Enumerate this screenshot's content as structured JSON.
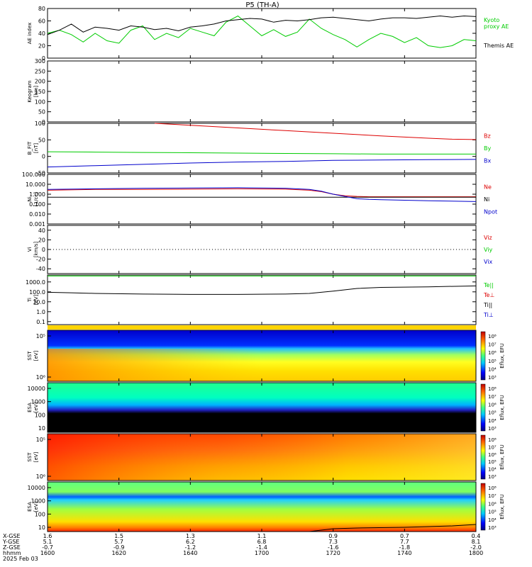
{
  "title": "P5 (TH-A)",
  "chart_data": [
    {
      "type": "line",
      "panel": "ae",
      "ylabel": "AE index",
      "ylim": [
        0,
        80
      ],
      "yticks": [
        "0",
        "20",
        "40",
        "60",
        "80"
      ],
      "series": [
        {
          "name": "Kyoto proxy AE",
          "color": "#00cc00",
          "x": [
            0,
            5,
            10,
            15,
            20,
            25,
            30,
            35,
            40,
            45,
            50,
            55,
            60,
            65,
            70,
            75,
            80,
            85,
            90,
            95,
            100,
            105,
            110,
            115,
            120,
            125,
            130,
            135,
            140,
            145,
            150,
            155,
            160,
            165,
            170,
            175,
            180
          ],
          "values": [
            40,
            45,
            38,
            26,
            40,
            28,
            24,
            45,
            52,
            30,
            40,
            33,
            48,
            42,
            36,
            58,
            68,
            52,
            36,
            46,
            35,
            42,
            63,
            48,
            38,
            30,
            18,
            30,
            40,
            35,
            25,
            33,
            20,
            17,
            20,
            30,
            28
          ]
        },
        {
          "name": "Themis AE",
          "color": "#000000",
          "x": [
            0,
            5,
            10,
            15,
            20,
            25,
            30,
            35,
            40,
            45,
            50,
            55,
            60,
            65,
            70,
            75,
            80,
            85,
            90,
            95,
            100,
            105,
            110,
            115,
            120,
            125,
            130,
            135,
            140,
            145,
            150,
            155,
            160,
            165,
            170,
            175,
            180
          ],
          "values": [
            38,
            45,
            55,
            42,
            50,
            48,
            45,
            52,
            50,
            46,
            48,
            44,
            50,
            52,
            55,
            60,
            62,
            64,
            63,
            58,
            61,
            60,
            62,
            65,
            66,
            64,
            62,
            60,
            63,
            65,
            65,
            64,
            66,
            68,
            66,
            68,
            67
          ]
        }
      ]
    },
    {
      "type": "line",
      "panel": "keogram",
      "ylabel": "Keogram",
      "yunit": "[km]",
      "ylim": [
        0,
        300
      ],
      "yticks": [
        "0",
        "50",
        "100",
        "150",
        "200",
        "250",
        "300"
      ],
      "series": []
    },
    {
      "type": "line",
      "panel": "bfield",
      "ylabel": "B_FIT",
      "yunit": "[nT]",
      "ylim": [
        -50,
        100
      ],
      "yticks": [
        "-50",
        "0",
        "50",
        "100"
      ],
      "series": [
        {
          "name": "Bz",
          "color": "#dd0000",
          "x": [
            45,
            60,
            80,
            100,
            120,
            140,
            160,
            170,
            180
          ],
          "values": [
            100,
            94,
            86,
            78,
            70,
            62,
            55,
            52,
            51
          ]
        },
        {
          "name": "By",
          "color": "#00cc00",
          "x": [
            0,
            20,
            40,
            60,
            80,
            100,
            120,
            140,
            160,
            180
          ],
          "values": [
            14,
            13,
            12,
            11,
            10,
            9,
            8,
            7,
            7,
            7
          ]
        },
        {
          "name": "Bx",
          "color": "#0000cc",
          "x": [
            0,
            20,
            40,
            60,
            80,
            100,
            120,
            140,
            160,
            180
          ],
          "values": [
            -32,
            -28,
            -24,
            -20,
            -17,
            -15,
            -12,
            -11,
            -10,
            -9
          ]
        }
      ]
    },
    {
      "type": "line",
      "panel": "density",
      "ylabel": "Ni",
      "yunit": "[1/cc]",
      "ylim": [
        0.001,
        100
      ],
      "yticks": [
        "0.001",
        "0.010",
        "0.100",
        "1.000",
        "10.000",
        "100.000"
      ],
      "series": [
        {
          "name": "Ne",
          "color": "#dd0000",
          "x": [
            0,
            20,
            40,
            60,
            80,
            100,
            110,
            115,
            120,
            125,
            130,
            135,
            140,
            160,
            180
          ],
          "values": [
            2.5,
            3,
            3,
            3.2,
            3.5,
            3.2,
            2.5,
            1.8,
            1.0,
            0.7,
            0.6,
            0.55,
            0.55,
            0.55,
            0.55
          ]
        },
        {
          "name": "Ni",
          "color": "#000000",
          "x": [
            0,
            20,
            40,
            60,
            80,
            100,
            120,
            140,
            160,
            180
          ],
          "values": [
            0.5,
            0.5,
            0.5,
            0.5,
            0.5,
            0.5,
            0.5,
            0.5,
            0.5,
            0.5
          ]
        },
        {
          "name": "Npot",
          "color": "#0000cc",
          "x": [
            0,
            20,
            40,
            60,
            80,
            100,
            110,
            115,
            120,
            125,
            130,
            135,
            140,
            160,
            180
          ],
          "values": [
            3,
            3.5,
            4,
            4.2,
            4.5,
            4,
            3,
            2,
            1.0,
            0.6,
            0.35,
            0.3,
            0.28,
            0.22,
            0.18
          ]
        }
      ]
    },
    {
      "type": "line",
      "panel": "velocity",
      "ylabel": "Vi",
      "yunit": "[km/s]",
      "ylim": [
        -50,
        50
      ],
      "yticks": [
        "-40",
        "-20",
        "0",
        "20",
        "40"
      ],
      "series": [
        {
          "name": "Viz",
          "color": "#dd0000",
          "x": [],
          "values": []
        },
        {
          "name": "Viy",
          "color": "#00cc00",
          "x": [],
          "values": []
        },
        {
          "name": "Vix",
          "color": "#0000cc",
          "x": [],
          "values": []
        }
      ]
    },
    {
      "type": "line",
      "panel": "temperature",
      "ylabel": "Ti",
      "yunit": "[eV]",
      "ylim": [
        0.05,
        5000
      ],
      "yticks": [
        "0.1",
        "1.0",
        "10.0",
        "100.0",
        "1000.0"
      ],
      "series": [
        {
          "name": "Te||",
          "color": "#00cc00",
          "x": [
            0,
            20,
            40,
            60,
            80,
            100,
            120,
            140,
            160,
            180
          ],
          "values": [
            4000,
            4000,
            4000,
            4000,
            4000,
            4000,
            4000,
            4000,
            4000,
            4000
          ]
        },
        {
          "name": "Te⊥",
          "color": "#dd0000",
          "x": [],
          "values": []
        },
        {
          "name": "Ti||",
          "color": "#000000",
          "x": [
            0,
            10,
            20,
            40,
            60,
            80,
            100,
            110,
            120,
            130,
            140,
            160,
            175,
            180
          ],
          "values": [
            90,
            80,
            70,
            60,
            55,
            55,
            60,
            70,
            120,
            220,
            280,
            320,
            380,
            400
          ]
        },
        {
          "name": "Ti⊥",
          "color": "#0000cc",
          "x": [],
          "values": []
        }
      ]
    },
    {
      "type": "heatmap",
      "panel": "sst-ion",
      "ylabel": "SST",
      "yunit": "[eV]",
      "yticks": [
        "10⁶",
        "10⁵"
      ],
      "colorbar_label": "Eflux, EFU",
      "colorbar_ticks": [
        "10⁸",
        "10⁷",
        "10⁶",
        "10⁵",
        "10⁴",
        "10³"
      ]
    },
    {
      "type": "heatmap",
      "panel": "esa-ion",
      "ylabel": "ESA",
      "yunit": "[eV]",
      "yticks": [
        "10",
        "100",
        "1000",
        "10000"
      ],
      "colorbar_label": "Eflux, EFU",
      "colorbar_ticks": [
        "10⁸",
        "10⁷",
        "10⁶",
        "10⁵",
        "10⁴",
        "10³"
      ]
    },
    {
      "type": "heatmap",
      "panel": "sst-elec",
      "ylabel": "SST",
      "yunit": "[eV]",
      "yticks": [
        "10⁶",
        "10⁵"
      ],
      "colorbar_label": "Eflux, EFU",
      "colorbar_ticks": [
        "10⁸",
        "10⁷",
        "10⁶",
        "10⁵",
        "10⁴",
        "10³"
      ]
    },
    {
      "type": "heatmap",
      "panel": "esa-elec",
      "ylabel": "ESA",
      "yunit": "[eV]",
      "yticks": [
        "10",
        "100",
        "1000",
        "10000"
      ],
      "colorbar_label": "Eflux, EFU",
      "colorbar_ticks": [
        "10⁸",
        "10⁷",
        "10⁶",
        "10⁵",
        "10⁴",
        "10³"
      ]
    }
  ],
  "xaxis": {
    "row_labels": [
      "X-GSE",
      "Y-GSE",
      "Z-GSE",
      "hhmm",
      "2025 Feb 03"
    ],
    "ticks": [
      {
        "x": 0,
        "values": [
          "1.6",
          "5.1",
          "-0.7",
          "1600"
        ]
      },
      {
        "x": 30,
        "values": [
          "1.5",
          "5.7",
          "-0.9",
          "1620"
        ]
      },
      {
        "x": 60,
        "values": [
          "1.3",
          "6.2",
          "-1.2",
          "1640"
        ]
      },
      {
        "x": 90,
        "values": [
          "1.1",
          "6.8",
          "-1.4",
          "1700"
        ]
      },
      {
        "x": 120,
        "values": [
          "0.9",
          "7.3",
          "-1.6",
          "1720"
        ]
      },
      {
        "x": 150,
        "values": [
          "0.7",
          "7.7",
          "-1.8",
          "1740"
        ]
      },
      {
        "x": 180,
        "values": [
          "0.4",
          "8.1",
          "-2.0",
          "1800"
        ]
      }
    ]
  },
  "colors": {
    "red": "#dd0000",
    "green": "#00cc00",
    "blue": "#0000cc",
    "black": "#000000"
  }
}
